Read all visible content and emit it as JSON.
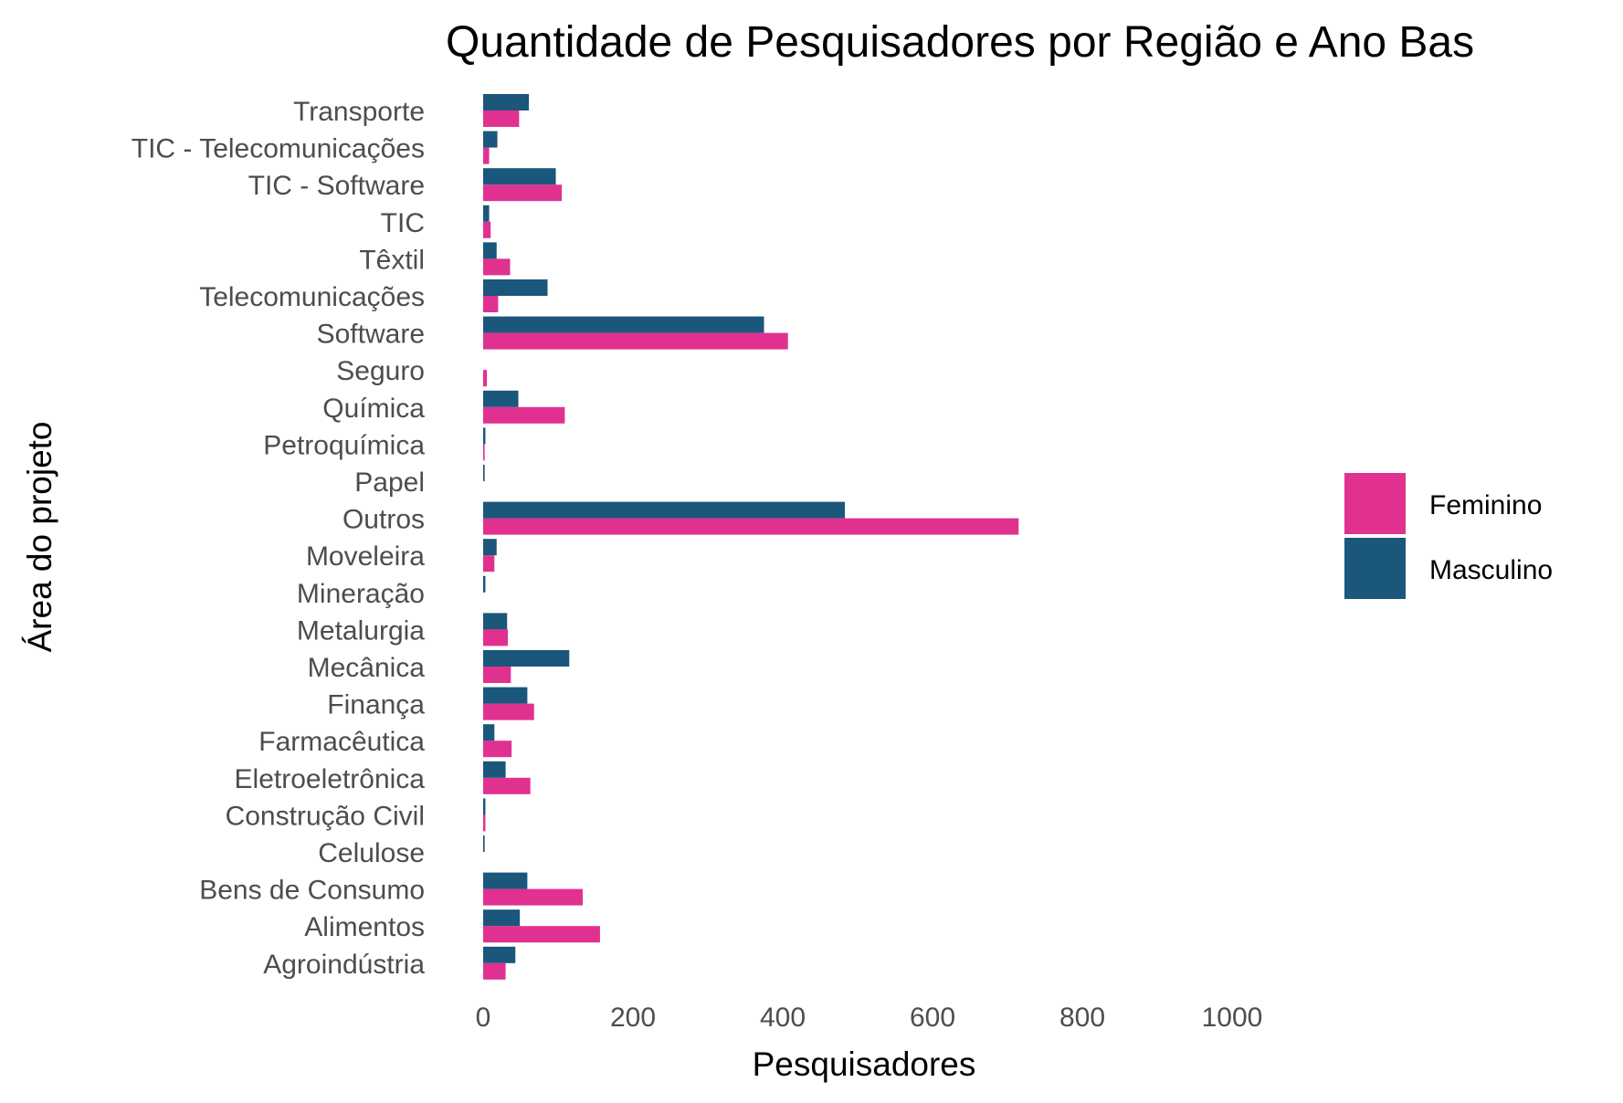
{
  "chart_data": {
    "type": "bar",
    "orientation": "horizontal",
    "title": "Quantidade de Pesquisadores por Região e Ano Bas",
    "xlabel": "Pesquisadores",
    "ylabel": "Área do projeto",
    "xlim": [
      0,
      1050
    ],
    "xticks": [
      0,
      200,
      400,
      600,
      800,
      1000
    ],
    "grid": false,
    "legend_position": "right",
    "categories": [
      "Transporte",
      "TIC - Telecomunicações",
      "TIC - Software",
      "TIC",
      "Têxtil",
      "Telecomunicações",
      "Software",
      "Seguro",
      "Química",
      "Petroquímica",
      "Papel",
      "Outros",
      "Moveleira",
      "Mineração",
      "Metalurgia",
      "Mecânica",
      "Finança",
      "Farmacêutica",
      "Eletroeletrônica",
      "Construção Civil",
      "Celulose",
      "Bens de Consumo",
      "Alimentos",
      "Agroindústria"
    ],
    "series": [
      {
        "name": "Feminino",
        "color": "#e03191",
        "values": [
          48,
          8,
          105,
          10,
          36,
          20,
          407,
          5,
          109,
          2,
          0,
          715,
          15,
          0,
          33,
          37,
          68,
          38,
          63,
          3,
          0,
          133,
          156,
          30
        ]
      },
      {
        "name": "Masculino",
        "color": "#1b567b",
        "values": [
          61,
          19,
          97,
          8,
          18,
          86,
          375,
          0,
          47,
          3,
          2,
          483,
          18,
          3,
          32,
          115,
          59,
          15,
          30,
          3,
          2,
          59,
          49,
          43
        ]
      }
    ]
  }
}
